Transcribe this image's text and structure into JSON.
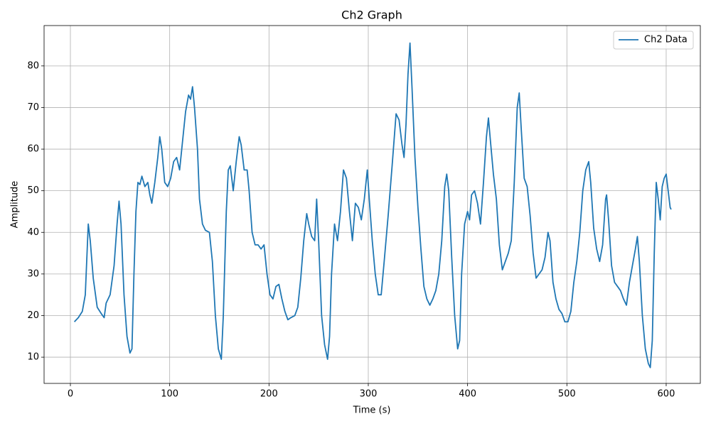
{
  "chart_data": {
    "type": "line",
    "title": "Ch2 Graph",
    "x_label": "Time (s)",
    "y_label": "Amplitude",
    "x": [
      4,
      8,
      12,
      15,
      18,
      20,
      23,
      27,
      31,
      34,
      36,
      40,
      44,
      47,
      49,
      51,
      54,
      57,
      60,
      62,
      64,
      66,
      68,
      70,
      72,
      75,
      78,
      80,
      82,
      85,
      88,
      90,
      92,
      95,
      98,
      101,
      104,
      107,
      110,
      113,
      116,
      119,
      121,
      123,
      125,
      128,
      130,
      133,
      136,
      140,
      143,
      146,
      149,
      152,
      154,
      157,
      159,
      161,
      164,
      167,
      170,
      172,
      175,
      178,
      180,
      183,
      186,
      189,
      192,
      195,
      198,
      201,
      204,
      207,
      210,
      213,
      216,
      219,
      222,
      226,
      229,
      232,
      235,
      238,
      240,
      243,
      246,
      248,
      250,
      253,
      256,
      259,
      261,
      263,
      266,
      269,
      272,
      275,
      278,
      281,
      284,
      287,
      290,
      293,
      296,
      299,
      301,
      304,
      307,
      310,
      313,
      316,
      320,
      324,
      328,
      331,
      334,
      336,
      338,
      340,
      342,
      344,
      347,
      350,
      353,
      356,
      359,
      362,
      365,
      368,
      371,
      374,
      377,
      379,
      381,
      384,
      387,
      390,
      392,
      394,
      397,
      400,
      402,
      404,
      407,
      410,
      413,
      416,
      419,
      421,
      423,
      426,
      429,
      432,
      435,
      438,
      441,
      444,
      447,
      450,
      452,
      454,
      457,
      460,
      463,
      466,
      469,
      472,
      475,
      478,
      481,
      483,
      486,
      489,
      492,
      495,
      498,
      501,
      504,
      507,
      510,
      513,
      516,
      519,
      522,
      524,
      527,
      530,
      533,
      536,
      539,
      540,
      542,
      545,
      548,
      551,
      554,
      557,
      560,
      563,
      566,
      569,
      571,
      573,
      576,
      579,
      582,
      584,
      586,
      588,
      590,
      592,
      594,
      596,
      598,
      600,
      602,
      604,
      605
    ],
    "series": [
      {
        "name": "Ch2 Data",
        "color": "#1f77b4",
        "values": [
          18.5,
          19.5,
          21,
          25,
          42,
          38,
          29,
          22,
          20.5,
          19.5,
          23,
          25,
          32,
          42,
          47.5,
          42,
          25,
          15,
          11,
          12,
          30,
          45,
          52,
          51.5,
          53.5,
          51,
          52,
          49,
          47,
          52,
          58,
          63,
          60,
          52,
          51,
          53,
          57,
          58,
          55,
          62,
          69,
          73,
          72,
          75,
          70,
          60,
          48,
          42,
          40.5,
          40,
          33,
          20,
          12,
          9.5,
          20,
          45,
          55,
          56,
          50,
          57,
          63,
          61,
          55,
          55,
          50,
          40,
          37,
          37,
          36,
          37,
          30,
          25,
          24,
          27,
          27.5,
          24,
          21,
          19,
          19.5,
          20,
          22,
          29,
          38,
          44.5,
          42,
          39,
          38,
          48,
          38,
          20,
          13,
          9.5,
          15,
          30,
          42,
          38,
          45,
          55,
          53,
          45,
          38,
          47,
          46,
          43,
          48,
          55,
          48,
          38,
          30,
          25,
          25,
          33,
          44,
          56,
          68.5,
          67,
          61,
          58,
          66,
          78,
          85.5,
          75,
          58,
          46,
          36,
          27,
          24,
          22.5,
          24,
          26,
          30,
          38,
          51,
          54,
          50,
          34,
          20,
          12,
          14,
          30,
          42,
          45,
          43,
          49,
          50,
          47,
          42,
          52,
          63,
          67.5,
          62,
          54,
          48,
          37,
          31,
          33,
          35,
          38,
          52,
          70,
          73.5,
          65,
          53,
          51,
          44,
          35,
          29,
          30,
          31,
          34,
          40,
          38,
          28,
          24,
          21.5,
          20.5,
          18.5,
          18.5,
          21,
          28,
          33,
          40,
          50,
          55,
          57,
          52,
          41,
          36,
          33,
          37,
          48,
          49,
          43,
          32,
          28,
          27,
          26,
          24,
          22.5,
          28,
          32,
          36,
          39,
          33,
          20,
          12,
          8.5,
          7.5,
          14,
          35,
          52,
          48,
          43,
          51,
          53,
          54,
          50,
          46,
          45.5
        ]
      }
    ],
    "xlim": [
      -26.5,
      634.4
    ],
    "ylim": [
      3.7,
      89.7
    ],
    "xticks": [
      0,
      100,
      200,
      300,
      400,
      500,
      600
    ],
    "yticks": [
      10,
      20,
      30,
      40,
      50,
      60,
      70,
      80
    ],
    "grid": true,
    "legend": "upper right"
  }
}
